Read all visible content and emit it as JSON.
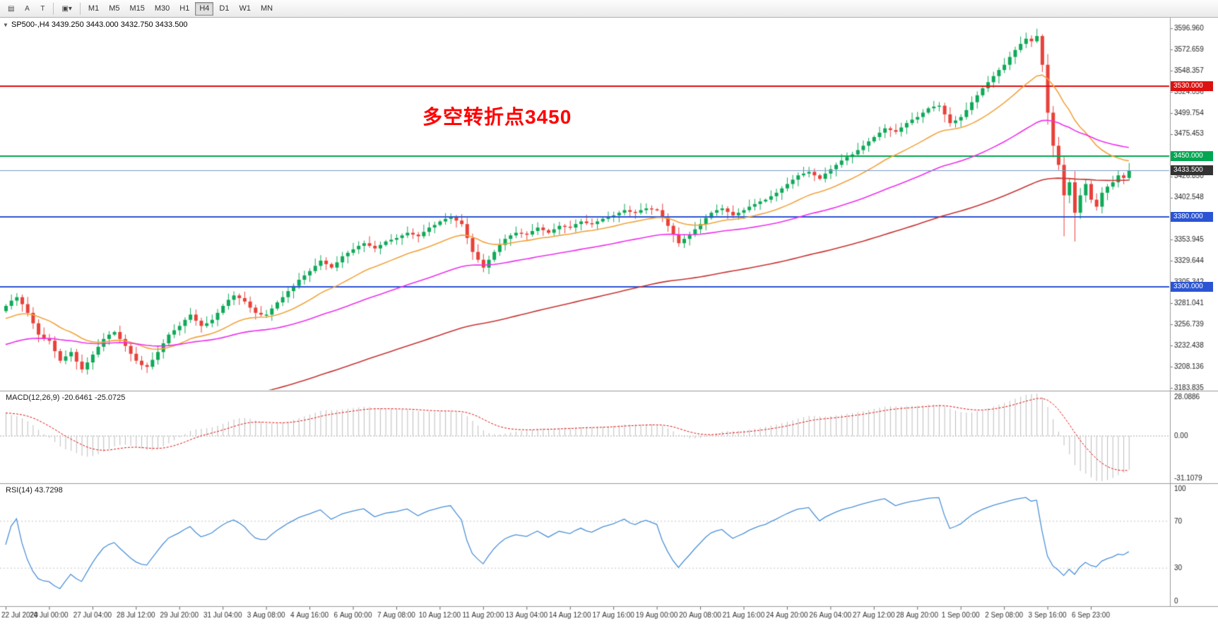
{
  "toolbar": {
    "icons": [
      {
        "name": "chart-tool-icon",
        "glyph": "▤"
      },
      {
        "name": "text-annotation-icon",
        "glyph": "A"
      },
      {
        "name": "label-tool-icon",
        "glyph": "T"
      },
      {
        "name": "objects-dropdown-icon",
        "glyph": "▣▾"
      }
    ],
    "timeframes": [
      "M1",
      "M5",
      "M15",
      "M30",
      "H1",
      "H4",
      "D1",
      "W1",
      "MN"
    ],
    "active_timeframe": "H4"
  },
  "chart_data": {
    "type": "candlestick",
    "symbol": "SP500-",
    "timeframe": "H4",
    "header": "SP500-,H4  3439.250 3443.000 3432.750 3433.500",
    "corner_arrow_glyph": "▼",
    "annotation": {
      "text": "多空转折点3450",
      "color": "#FF0000"
    },
    "colors": {
      "up": "#0FA958",
      "down": "#E8413A",
      "background": "#FFFFFF",
      "axis_text": "#222222",
      "current_price_line": "#7A9CC6",
      "current_price_badge": "#333333",
      "histogram": "#BDBDBD",
      "macd_signal": "#E01010",
      "rsi_line": "#4A90D9"
    },
    "y_axis": {
      "min": 3183.835,
      "max": 3596.96,
      "labels": [
        "3596.960",
        "3572.659",
        "3548.357",
        "3524.056",
        "3499.754",
        "3475.453",
        "3451.151",
        "3426.850",
        "3402.548",
        "3378.247",
        "3353.945",
        "3329.644",
        "3305.342",
        "3281.041",
        "3256.739",
        "3232.438",
        "3208.136",
        "3183.835"
      ]
    },
    "x_labels": [
      "22 Jul 2020",
      "24 Jul 00:00",
      "27 Jul 04:00",
      "28 Jul 12:00",
      "29 Jul 20:00",
      "31 Jul 04:00",
      "3 Aug 08:00",
      "4 Aug 16:00",
      "6 Aug 00:00",
      "7 Aug 08:00",
      "10 Aug 12:00",
      "11 Aug 20:00",
      "13 Aug 04:00",
      "14 Aug 12:00",
      "17 Aug 16:00",
      "19 Aug 00:00",
      "20 Aug 08:00",
      "21 Aug 16:00",
      "24 Aug 20:00",
      "26 Aug 04:00",
      "27 Aug 12:00",
      "28 Aug 20:00",
      "1 Sep 00:00",
      "2 Sep 08:00",
      "3 Sep 16:00",
      "6 Sep 23:00"
    ],
    "x_label_interval": 8,
    "first_open": 3272,
    "closes": [
      3278,
      3284,
      3288,
      3280,
      3270,
      3258,
      3245,
      3240,
      3238,
      3226,
      3215,
      3220,
      3225,
      3214,
      3205,
      3213,
      3222,
      3231,
      3240,
      3245,
      3248,
      3240,
      3232,
      3223,
      3215,
      3210,
      3208,
      3216,
      3225,
      3235,
      3245,
      3250,
      3255,
      3262,
      3268,
      3261,
      3255,
      3258,
      3262,
      3270,
      3278,
      3285,
      3290,
      3287,
      3283,
      3276,
      3270,
      3268,
      3268,
      3275,
      3282,
      3288,
      3295,
      3301,
      3308,
      3313,
      3318,
      3324,
      3330,
      3326,
      3322,
      3328,
      3335,
      3339,
      3343,
      3347,
      3350,
      3347,
      3344,
      3348,
      3352,
      3354,
      3356,
      3359,
      3362,
      3360,
      3358,
      3363,
      3368,
      3371,
      3375,
      3378,
      3380,
      3376,
      3372,
      3356,
      3340,
      3331,
      3322,
      3331,
      3340,
      3348,
      3355,
      3359,
      3362,
      3361,
      3360,
      3364,
      3368,
      3365,
      3362,
      3366,
      3370,
      3369,
      3368,
      3372,
      3375,
      3373,
      3372,
      3375,
      3378,
      3380,
      3382,
      3385,
      3388,
      3386,
      3385,
      3388,
      3390,
      3389,
      3388,
      3379,
      3370,
      3360,
      3350,
      3355,
      3360,
      3366,
      3372,
      3379,
      3385,
      3388,
      3390,
      3386,
      3382,
      3385,
      3388,
      3392,
      3395,
      3398,
      3400,
      3404,
      3408,
      3413,
      3418,
      3423,
      3428,
      3430,
      3432,
      3428,
      3424,
      3430,
      3435,
      3440,
      3445,
      3449,
      3452,
      3457,
      3462,
      3467,
      3472,
      3477,
      3482,
      3480,
      3478,
      3483,
      3488,
      3492,
      3495,
      3500,
      3505,
      3507,
      3508,
      3498,
      3488,
      3491,
      3495,
      3503,
      3512,
      3520,
      3528,
      3535,
      3542,
      3549,
      3555,
      3564,
      3572,
      3579,
      3585,
      3582,
      3588,
      3555,
      3500,
      3462,
      3440,
      3405,
      3420,
      3385,
      3405,
      3418,
      3400,
      3392,
      3408,
      3415,
      3420,
      3428,
      3425,
      3433.5
    ],
    "high_overrides": {
      "188": 3592,
      "190": 3596.5,
      "191": 3590
    },
    "low_overrides": {
      "195": 3358,
      "197": 3352
    },
    "horizontal_lines": [
      {
        "price": 3530,
        "label": "3530.000",
        "color": "#DD1111"
      },
      {
        "price": 3450,
        "label": "3450.000",
        "color": "#00A651"
      },
      {
        "price": 3380,
        "label": "3380.000",
        "color": "#2B54D4"
      },
      {
        "price": 3300,
        "label": "3300.000",
        "color": "#2B54D4"
      }
    ],
    "current_price": {
      "value": 3433.5,
      "label": "3433.500"
    },
    "moving_averages": [
      {
        "name": "fast-ma",
        "period": 20,
        "seed": 3262,
        "color": "#F2A33C"
      },
      {
        "name": "medium-ma",
        "period": 55,
        "seed": 3232,
        "color": "#EE2EEE"
      },
      {
        "name": "slow-ma",
        "period": 124,
        "seed": 3095,
        "color": "#C83232"
      }
    ],
    "indicators": {
      "macd": {
        "label": "MACD(12,26,9) -20.6461 -25.0725",
        "fast": 12,
        "slow": 26,
        "signal": 9,
        "value": -20.6461,
        "signal_value": -25.0725,
        "axis_labels": [
          "28.0886",
          "0.00",
          "-31.1079"
        ]
      },
      "rsi": {
        "label": "RSI(14) 43.7298",
        "period": 14,
        "value": 43.7298,
        "levels": [
          70,
          30
        ],
        "axis_labels": [
          "100",
          "70",
          "30",
          "0"
        ]
      }
    }
  }
}
